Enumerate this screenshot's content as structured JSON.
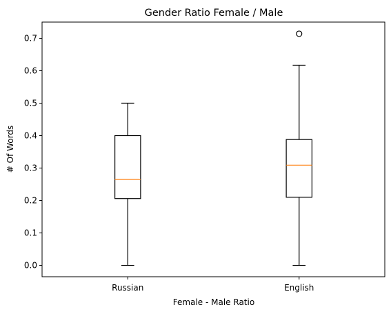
{
  "chart_data": {
    "type": "box",
    "title": "Gender Ratio Female / Male",
    "xlabel": "Female - Male Ratio",
    "ylabel": "# Of Words",
    "categories": [
      "Russian",
      "English"
    ],
    "ylim": [
      -0.035,
      0.75
    ],
    "yticks": [
      0.0,
      0.1,
      0.2,
      0.3,
      0.4,
      0.5,
      0.6,
      0.7
    ],
    "ytick_labels": [
      "0.0",
      "0.1",
      "0.2",
      "0.3",
      "0.4",
      "0.5",
      "0.6",
      "0.7"
    ],
    "boxes": [
      {
        "name": "Russian",
        "whisker_low": 0.0,
        "q1": 0.206,
        "median": 0.265,
        "q3": 0.4,
        "whisker_high": 0.5,
        "outliers": []
      },
      {
        "name": "English",
        "whisker_low": 0.0,
        "q1": 0.21,
        "median": 0.309,
        "q3": 0.388,
        "whisker_high": 0.617,
        "outliers": [
          0.714
        ]
      }
    ],
    "grid": false,
    "colors": {
      "box": "#000000",
      "median": "#ff7f0e",
      "frame": "#000000"
    }
  }
}
